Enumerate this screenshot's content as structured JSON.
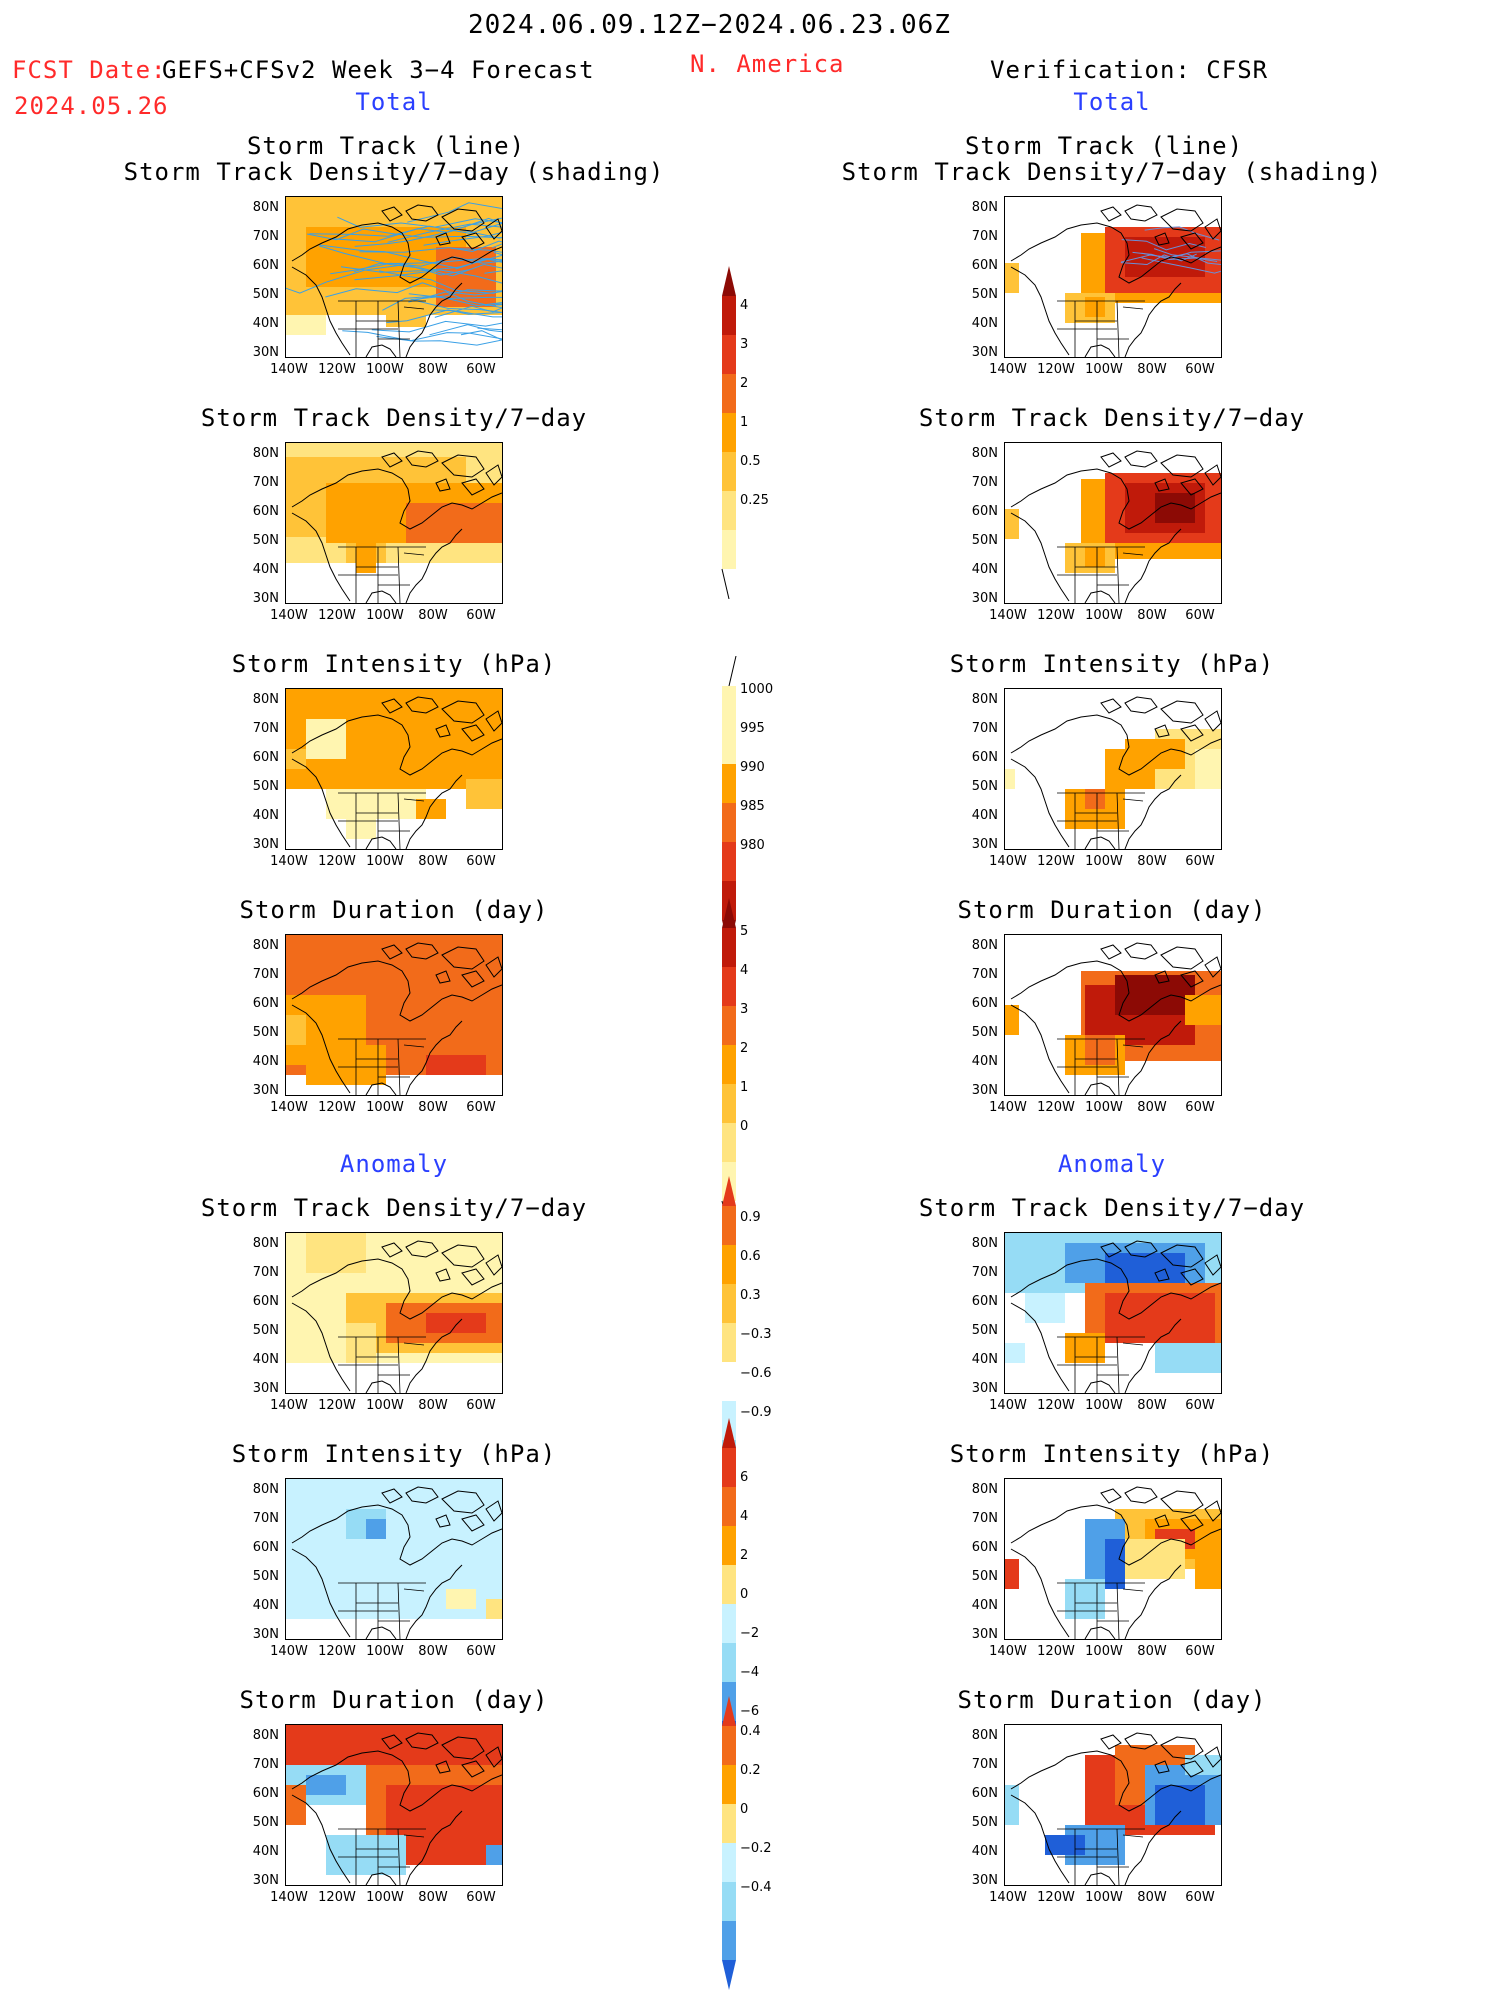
{
  "header": {
    "date_range": "2024.06.09.12Z−2024.06.23.06Z",
    "fcst_label": "FCST Date:",
    "forecast_title": "GEFS+CFSv2 Week 3−4 Forecast",
    "fcst_date": "2024.05.26",
    "region": "N. America",
    "verification": "Verification: CFSR"
  },
  "sections": {
    "total": "Total",
    "anomaly": "Anomaly"
  },
  "panel_titles": {
    "track_line": "Storm Track (line)",
    "track_shading": "Storm Track Density/7−day (shading)",
    "density": "Storm Track Density/7−day",
    "intensity": "Storm Intensity (hPa)",
    "duration": "Storm Duration (day)"
  },
  "axes": {
    "lat_ticks": [
      "80N",
      "70N",
      "60N",
      "50N",
      "40N",
      "30N"
    ],
    "lon_ticks": [
      "140W",
      "120W",
      "100W",
      "80W",
      "60W"
    ]
  },
  "colorbars": {
    "density_total": [
      "4",
      "3",
      "2",
      "1",
      "0.5",
      "0.25"
    ],
    "intensity_total": [
      "1000",
      "995",
      "990",
      "985",
      "980"
    ],
    "duration_total": [
      "5",
      "4",
      "3",
      "2",
      "1",
      "0"
    ],
    "density_anom": [
      "0.9",
      "0.6",
      "0.3",
      "−0.3",
      "−0.6",
      "−0.9"
    ],
    "intensity_anom": [
      "6",
      "4",
      "2",
      "0",
      "−2",
      "−4",
      "−6"
    ],
    "duration_anom": [
      "0.4",
      "0.2",
      "0",
      "−0.2",
      "−0.4"
    ]
  },
  "colors": {
    "header_red": "#ff2a2a",
    "section_blue": "#2a3fff",
    "track_line": "#3aa0e6"
  }
}
